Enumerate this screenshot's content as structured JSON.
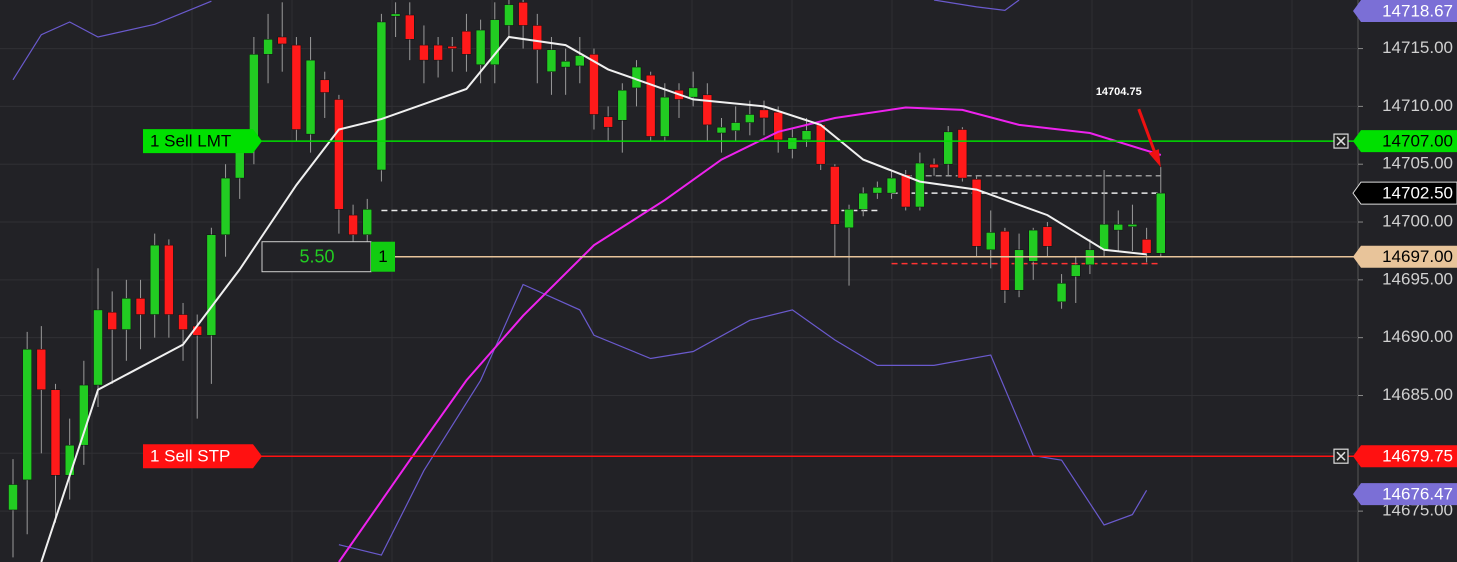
{
  "chart_data": {
    "type": "candlestick",
    "color_up": "#22cc22",
    "color_down": "#ff1a1a",
    "ylim": [
      14670.6,
      14719.2
    ],
    "yticks": [
      {
        "value": 14675,
        "label": "14675.00"
      },
      {
        "value": 14680,
        "label": "14680.00"
      },
      {
        "value": 14685,
        "label": "14685.00"
      },
      {
        "value": 14690,
        "label": "14690.00"
      },
      {
        "value": 14695,
        "label": "14695.00"
      },
      {
        "value": 14700,
        "label": "14700.00"
      },
      {
        "value": 14705,
        "label": "14705.00"
      },
      {
        "value": 14710,
        "label": "14710.00"
      },
      {
        "value": 14715,
        "label": "14715.00"
      }
    ],
    "grid": true,
    "open": [
      14675.1,
      14677.7,
      14689,
      14685.5,
      14678.1,
      14680.7,
      14685.9,
      14692.2,
      14690.7,
      14693.4,
      14692,
      14698,
      14692,
      14691,
      14690.2,
      14698.9,
      14703.8,
      14706.7,
      14714.5,
      14716,
      14715.3,
      14707.6,
      14712.3,
      14710.6,
      14700.6,
      14698.9,
      14704.5,
      14717.8,
      14717.9,
      14715.3,
      14715.3,
      14715.2,
      14716.5,
      14713.6,
      14713.6,
      14717,
      14719,
      14717,
      14713,
      14713.4,
      14713.5,
      14714.5,
      14709.1,
      14708.8,
      14711.6,
      14712.7,
      14707.4,
      14711.4,
      14710.8,
      14711,
      14707.7,
      14707.9,
      14708.6,
      14709.7,
      14709.5,
      14706.3,
      14707.1,
      14708.4,
      14704.8,
      14699.5,
      14701.1,
      14702.5,
      14702.5,
      14704.1,
      14701.3,
      14705,
      14705,
      14708,
      14703.7,
      14697.6,
      14699.2,
      14694.1,
      14696.6,
      14699.6,
      14693.1,
      14695.3,
      14696.3,
      14697.6,
      14699.3,
      14699.6,
      14698.5,
      14697.3
    ],
    "high": [
      14679.5,
      14690.5,
      14691,
      14686,
      14683,
      14688,
      14696,
      14694,
      14695,
      14695,
      14699,
      14698.5,
      14693,
      14692,
      14699.5,
      14705,
      14708,
      14716,
      14718,
      14719,
      14716,
      14716,
      14713,
      14711,
      14701.5,
      14702,
      14718,
      14719,
      14719,
      14717,
      14716,
      14716,
      14718,
      14717.5,
      14719,
      14719.2,
      14719.2,
      14718,
      14716,
      14715,
      14716,
      14715,
      14710,
      14712,
      14714,
      14713,
      14712,
      14712,
      14713,
      14712,
      14709,
      14710,
      14710.5,
      14710.5,
      14710,
      14708,
      14709,
      14708.5,
      14705,
      14701.5,
      14703,
      14703.5,
      14704.5,
      14704.5,
      14706,
      14705.5,
      14708.3,
      14708.2,
      14704,
      14701,
      14699.5,
      14699,
      14699.5,
      14700,
      14695.5,
      14697,
      14698.5,
      14704.5,
      14701,
      14701.5,
      14699.5,
      14704.75
    ],
    "low": [
      14671,
      14673,
      14680,
      14674,
      14676,
      14679,
      14684,
      14686,
      14688,
      14689,
      14690,
      14690,
      14688,
      14683,
      14686,
      14697,
      14702,
      14705,
      14712,
      14713,
      14707,
      14706,
      14709,
      14699,
      14698,
      14698,
      14703.5,
      14716,
      14714,
      14712,
      14712.5,
      14713,
      14713,
      14712,
      14712,
      14716,
      14715,
      14712,
      14711,
      14711,
      14712,
      14708,
      14707,
      14706,
      14710,
      14707,
      14707,
      14709,
      14710,
      14707,
      14706,
      14707,
      14707.5,
      14707.5,
      14706,
      14705.5,
      14706.5,
      14704.5,
      14697,
      14694.5,
      14700.5,
      14702,
      14702,
      14701,
      14701,
      14704,
      14704,
      14703.5,
      14697,
      14696,
      14693,
      14693.5,
      14695,
      14697,
      14692.5,
      14693,
      14695.5,
      14697,
      14697.5,
      14697.5,
      14696.5,
      14697
    ],
    "close": [
      14677.3,
      14689,
      14685.5,
      14678.1,
      14680.7,
      14685.9,
      14692.4,
      14690.7,
      14693.4,
      14692,
      14698,
      14692,
      14690.7,
      14690.2,
      14698.9,
      14703.8,
      14706.7,
      14714.5,
      14715.8,
      14715.4,
      14708,
      14714,
      14711.2,
      14701.1,
      14698.9,
      14701.1,
      14717.3,
      14718,
      14715.8,
      14714,
      14714,
      14715,
      14714.5,
      14716.6,
      14717.5,
      14718.8,
      14717,
      14714.9,
      14714.9,
      14713.9,
      14714.4,
      14709.3,
      14708.2,
      14711.4,
      14713.4,
      14707.4,
      14710.8,
      14710.6,
      14711.6,
      14708.4,
      14708.2,
      14708.6,
      14709.3,
      14709,
      14707.1,
      14707.3,
      14707.9,
      14705,
      14699.8,
      14701.1,
      14702.5,
      14703,
      14703.8,
      14701.3,
      14705.1,
      14704.7,
      14707.8,
      14703.8,
      14697.9,
      14699.1,
      14694.1,
      14697.6,
      14699.3,
      14697.9,
      14694.7,
      14696.3,
      14697.6,
      14699.8,
      14699.8,
      14699.8,
      14697.3,
      14702.5
    ],
    "lines": [
      {
        "color": "#6a5acd",
        "x": [
          0,
          2,
          4,
          6,
          10,
          14
        ],
        "values": [
          14712.3,
          14716.2,
          14717.3,
          14716,
          14717.1,
          14719.1
        ]
      },
      {
        "color": "#6a5acd",
        "x": [
          65,
          68,
          70,
          71
        ],
        "values": [
          14719.2,
          14718.6,
          14718.3,
          14719.2
        ]
      },
      {
        "color": "#6a5acd",
        "x": [
          23,
          26,
          29,
          33,
          36,
          40,
          41,
          45,
          48,
          52,
          55,
          58,
          61,
          65,
          69,
          72,
          74,
          77,
          79,
          80
        ],
        "values": [
          14672.1,
          14671.2,
          14678.5,
          14686.3,
          14694.6,
          14692.4,
          14690.2,
          14688.2,
          14688.8,
          14691.5,
          14692.4,
          14689.8,
          14687.6,
          14687.6,
          14688.5,
          14679.8,
          14679.4,
          14673.8,
          14674.7,
          14676.8
        ]
      },
      {
        "color": "#ee22ee",
        "x": [
          23,
          28,
          32,
          36,
          41,
          46,
          50,
          54,
          58,
          63,
          67,
          71,
          76,
          81
        ],
        "values": [
          14670.6,
          14679.4,
          14686.3,
          14691.9,
          14698,
          14701.9,
          14705.4,
          14707.8,
          14709,
          14709.9,
          14709.7,
          14708.4,
          14707.7,
          14705.8
        ]
      },
      {
        "color": "#f0f0f0",
        "x": [
          2,
          6,
          12,
          16,
          20,
          23,
          26,
          29,
          32,
          35,
          39,
          42,
          45,
          48,
          53,
          57,
          60,
          64,
          68,
          73,
          77,
          80
        ],
        "values": [
          14670.6,
          14685.5,
          14689.4,
          14695.9,
          14703.2,
          14708,
          14708.9,
          14710.2,
          14711.5,
          14716,
          14715.3,
          14713.2,
          14711.9,
          14710.6,
          14710,
          14708.4,
          14705.4,
          14703.5,
          14702.8,
          14700.6,
          14697.6,
          14697.2
        ]
      }
    ],
    "dashed_levels": [
      {
        "value": 14701.0,
        "color": "#e8e8e8",
        "x": [
          26,
          61
        ]
      },
      {
        "value": 14704.0,
        "color": "#9a9a9a",
        "x": [
          63,
          81
        ]
      },
      {
        "value": 14702.5,
        "color": "#e8e8e8",
        "x": [
          62,
          81
        ]
      },
      {
        "value": 14696.4,
        "color": "#ff3333",
        "x": [
          62,
          81
        ]
      }
    ],
    "orders": [
      {
        "label": "1 Sell LMT",
        "price": 14707,
        "price_label": "14707.00",
        "color": "#00e000",
        "text_color": "#000000"
      },
      {
        "label": "1 Sell STP",
        "price": 14679.75,
        "price_label": "14679.75",
        "color": "#ff1111",
        "text_color": "#ffffff"
      }
    ],
    "position": {
      "price": 14697,
      "price_label": "14697.00",
      "pnl": "5.50",
      "qty": 1,
      "color": "#e8c49a"
    },
    "price_tags": [
      {
        "value": 14718.67,
        "label": "14718.67",
        "color": "#7b6fd6",
        "text_color": "#ffffff"
      },
      {
        "value": 14702.5,
        "label": "14702.50",
        "color": "#000000",
        "text_color": "#ffffff"
      },
      {
        "value": 14676.47,
        "label": "14676.47",
        "color": "#7b6fd6",
        "text_color": "#ffffff"
      }
    ],
    "annotation": {
      "label": "14704.75",
      "value": 14704.75,
      "x": 81
    }
  }
}
